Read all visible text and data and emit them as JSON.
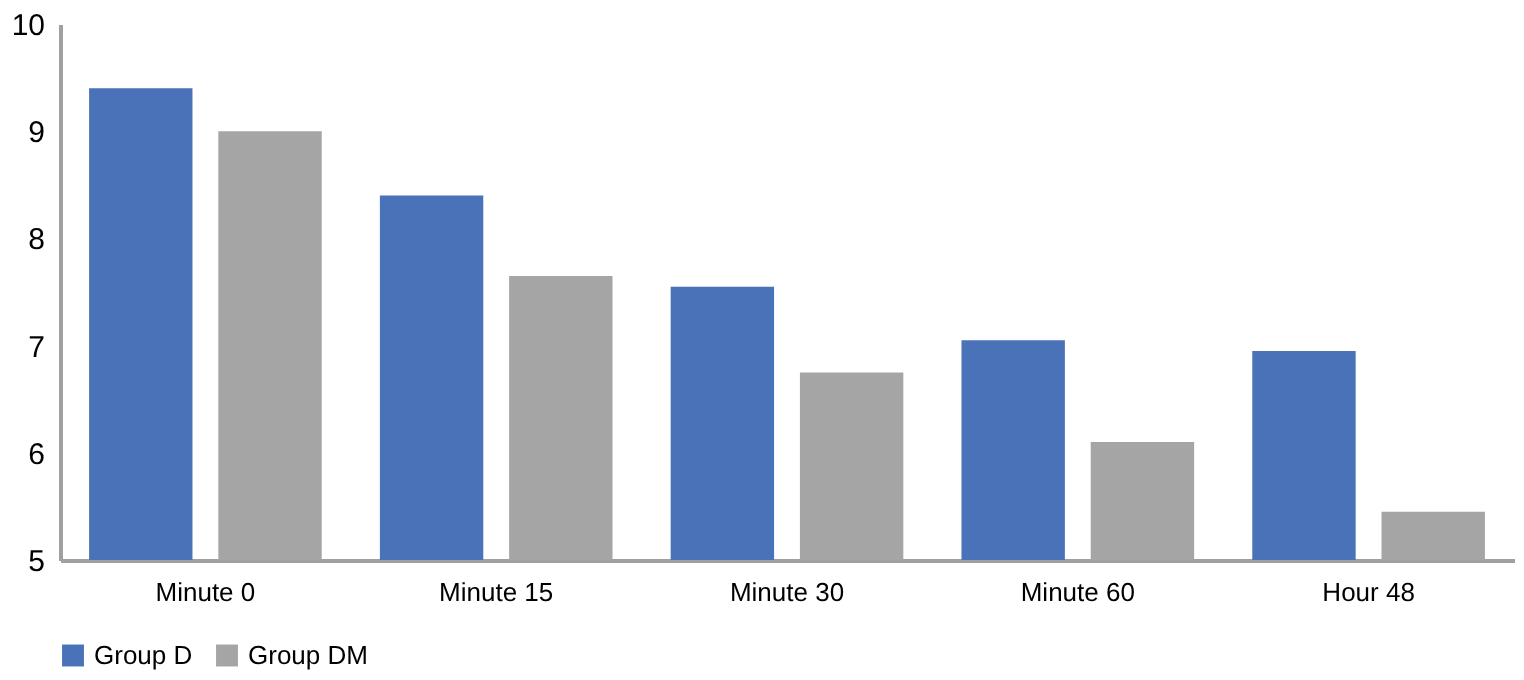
{
  "chart_data": {
    "type": "bar",
    "categories": [
      "Minute 0",
      "Minute 15",
      "Minute 30",
      "Minute 60",
      "Hour 48"
    ],
    "series": [
      {
        "name": "Group D",
        "color": "#4a72b8",
        "values": [
          9.4,
          8.4,
          7.55,
          7.05,
          6.95
        ]
      },
      {
        "name": "Group DM",
        "color": "#a5a5a5",
        "values": [
          9.0,
          7.65,
          6.75,
          6.1,
          5.45
        ]
      }
    ],
    "ylim": [
      5,
      10
    ],
    "yticks": [
      5,
      6,
      7,
      8,
      9,
      10
    ],
    "grid": false,
    "legend": "bottom"
  }
}
